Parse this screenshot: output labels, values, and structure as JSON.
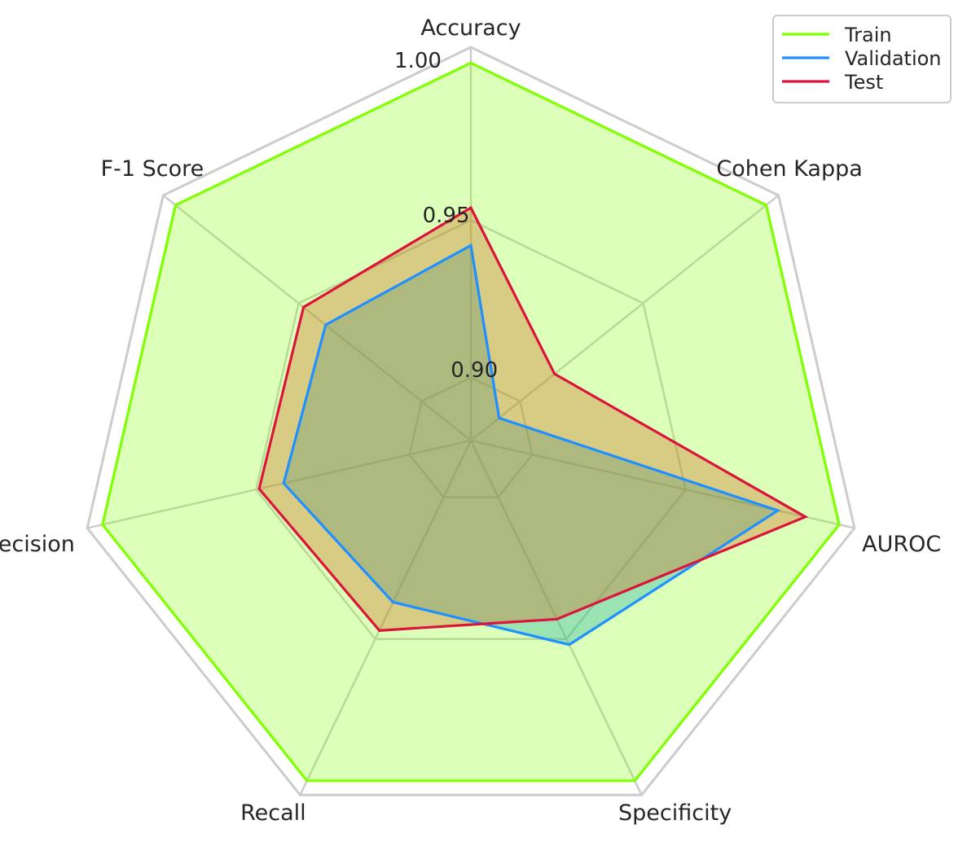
{
  "chart_data": {
    "type": "radar",
    "categories": [
      "Accuracy",
      "Cohen Kappa",
      "AUROC",
      "Specificity",
      "Recall",
      "Precision",
      "F-1 Score"
    ],
    "rlim": [
      0.88,
      1.005
    ],
    "rticks": [
      0.9,
      0.95,
      1.0
    ],
    "rtick_labels": [
      "0.90",
      "0.95",
      "1.00"
    ],
    "grid": true,
    "legend_position": "top-right",
    "series": [
      {
        "name": "Train",
        "color": "#7fff00",
        "fill": "#7fff00",
        "fill_opacity": 0.27,
        "values": [
          1.0,
          1.0,
          1.0,
          1.0,
          1.0,
          1.0,
          1.0
        ]
      },
      {
        "name": "Validation",
        "color": "#1e90ff",
        "fill": "#20b2aa",
        "fill_opacity": 0.35,
        "values": [
          0.942,
          0.8915,
          0.98,
          0.952,
          0.937,
          0.941,
          0.939
        ]
      },
      {
        "name": "Test",
        "color": "#dc143c",
        "fill": "#d2691e",
        "fill_opacity": 0.35,
        "values": [
          0.954,
          0.914,
          0.989,
          0.943,
          0.947,
          0.949,
          0.948
        ]
      }
    ]
  }
}
